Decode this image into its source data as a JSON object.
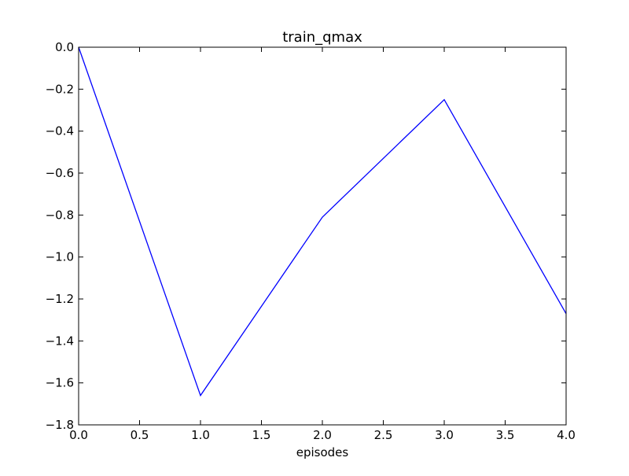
{
  "chart_data": {
    "type": "line",
    "title": "train_qmax",
    "xlabel": "episodes",
    "ylabel": "",
    "xlim": [
      0.0,
      4.0
    ],
    "ylim": [
      -1.8,
      0.0
    ],
    "xticks": [
      0.0,
      0.5,
      1.0,
      1.5,
      2.0,
      2.5,
      3.0,
      3.5,
      4.0
    ],
    "xtick_labels": [
      "0.0",
      "0.5",
      "1.0",
      "1.5",
      "2.0",
      "2.5",
      "3.0",
      "3.5",
      "4.0"
    ],
    "yticks": [
      0.0,
      -0.2,
      -0.4,
      -0.6,
      -0.8,
      -1.0,
      -1.2,
      -1.4,
      -1.6,
      -1.8
    ],
    "ytick_labels": [
      "0.0",
      "−0.2",
      "−0.4",
      "−0.6",
      "−0.8",
      "−1.0",
      "−1.2",
      "−1.4",
      "−1.6",
      "−1.8"
    ],
    "grid": false,
    "legend": "none",
    "series": [
      {
        "color": "#0000ff",
        "x": [
          0,
          1,
          2,
          3,
          4
        ],
        "y": [
          0.0,
          -1.66,
          -0.81,
          -0.25,
          -1.27
        ]
      }
    ]
  }
}
